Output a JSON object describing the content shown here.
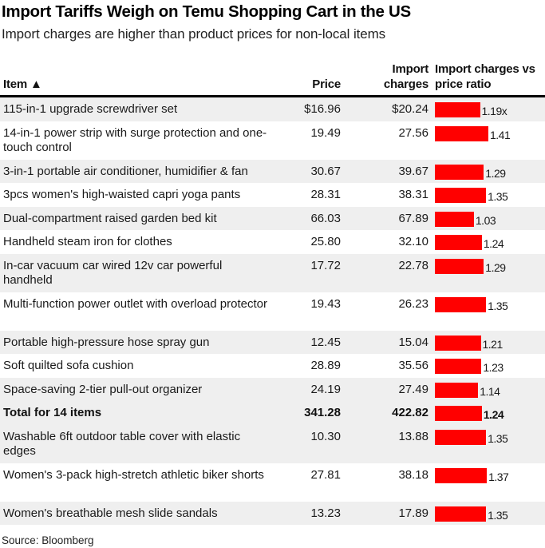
{
  "header": {
    "title": "Import Tariffs Weigh on Temu Shopping Cart in the US",
    "subtitle": "Import charges are higher than product prices for non-local items"
  },
  "columns": {
    "item": "Item ▲",
    "price": "Price",
    "import_line1": "Import",
    "import_line2": "charges",
    "ratio_line1": "Import charges vs",
    "ratio_line2": "price ratio"
  },
  "source": "Source: Bloomberg",
  "colors": {
    "bar": "#ff0000",
    "stripe": "#efefef"
  },
  "chart_data": {
    "type": "table",
    "title": "Import Tariffs Weigh on Temu Shopping Cart in the US",
    "subtitle": "Import charges are higher than product prices for non-local items",
    "columns": [
      "Item",
      "Price",
      "Import charges",
      "Import charges vs price ratio"
    ],
    "sort": "Item ascending",
    "rows": [
      {
        "item": "115-in-1 upgrade screwdriver set",
        "price": "$16.96",
        "import": "$20.24",
        "ratio": 1.19,
        "ratio_label": "1.19x",
        "lines": 1,
        "bg": "grey"
      },
      {
        "item": "14-in-1 power strip with surge protection and one-touch control",
        "price": "19.49",
        "import": "27.56",
        "ratio": 1.41,
        "ratio_label": "1.41",
        "lines": 2,
        "bg": "white"
      },
      {
        "item": "3-in-1 portable air conditioner, humidifier & fan",
        "price": "30.67",
        "import": "39.67",
        "ratio": 1.29,
        "ratio_label": "1.29",
        "lines": 1,
        "bg": "grey"
      },
      {
        "item": "3pcs women's high-waisted capri yoga pants",
        "price": "28.31",
        "import": "38.31",
        "ratio": 1.35,
        "ratio_label": "1.35",
        "lines": 1,
        "bg": "white"
      },
      {
        "item": "Dual-compartment raised garden bed kit",
        "price": "66.03",
        "import": "67.89",
        "ratio": 1.03,
        "ratio_label": "1.03",
        "lines": 1,
        "bg": "grey"
      },
      {
        "item": "Handheld steam iron for clothes",
        "price": "25.80",
        "import": "32.10",
        "ratio": 1.24,
        "ratio_label": "1.24",
        "lines": 1,
        "bg": "white"
      },
      {
        "item": "In-car vacuum car wired 12v car powerful handheld",
        "price": "17.72",
        "import": "22.78",
        "ratio": 1.29,
        "ratio_label": "1.29",
        "lines": 2,
        "bg": "grey"
      },
      {
        "item": "Multi-function power outlet with overload protector",
        "price": "19.43",
        "import": "26.23",
        "ratio": 1.35,
        "ratio_label": "1.35",
        "lines": 2,
        "bg": "white"
      },
      {
        "item": "Portable high-pressure hose spray gun",
        "price": "12.45",
        "import": "15.04",
        "ratio": 1.21,
        "ratio_label": "1.21",
        "lines": 1,
        "bg": "grey"
      },
      {
        "item": "Soft quilted sofa cushion",
        "price": "28.89",
        "import": "35.56",
        "ratio": 1.23,
        "ratio_label": "1.23",
        "lines": 1,
        "bg": "white"
      },
      {
        "item": "Space-saving 2-tier pull-out organizer",
        "price": "24.19",
        "import": "27.49",
        "ratio": 1.14,
        "ratio_label": "1.14",
        "lines": 1,
        "bg": "grey"
      },
      {
        "item": "Total for 14 items",
        "price": "341.28",
        "import": "422.82",
        "ratio": 1.24,
        "ratio_label": "1.24",
        "lines": 1,
        "bg": "grey",
        "bold": true
      },
      {
        "item": "Washable 6ft outdoor table cover with elastic edges",
        "price": "10.30",
        "import": "13.88",
        "ratio": 1.35,
        "ratio_label": "1.35",
        "lines": 2,
        "bg": "grey"
      },
      {
        "item": "Women's 3-pack high-stretch athletic biker shorts",
        "price": "27.81",
        "import": "38.18",
        "ratio": 1.37,
        "ratio_label": "1.37",
        "lines": 2,
        "bg": "white"
      },
      {
        "item": "Women's breathable mesh slide sandals",
        "price": "13.23",
        "import": "17.89",
        "ratio": 1.35,
        "ratio_label": "1.35",
        "lines": 1,
        "bg": "grey"
      }
    ]
  }
}
